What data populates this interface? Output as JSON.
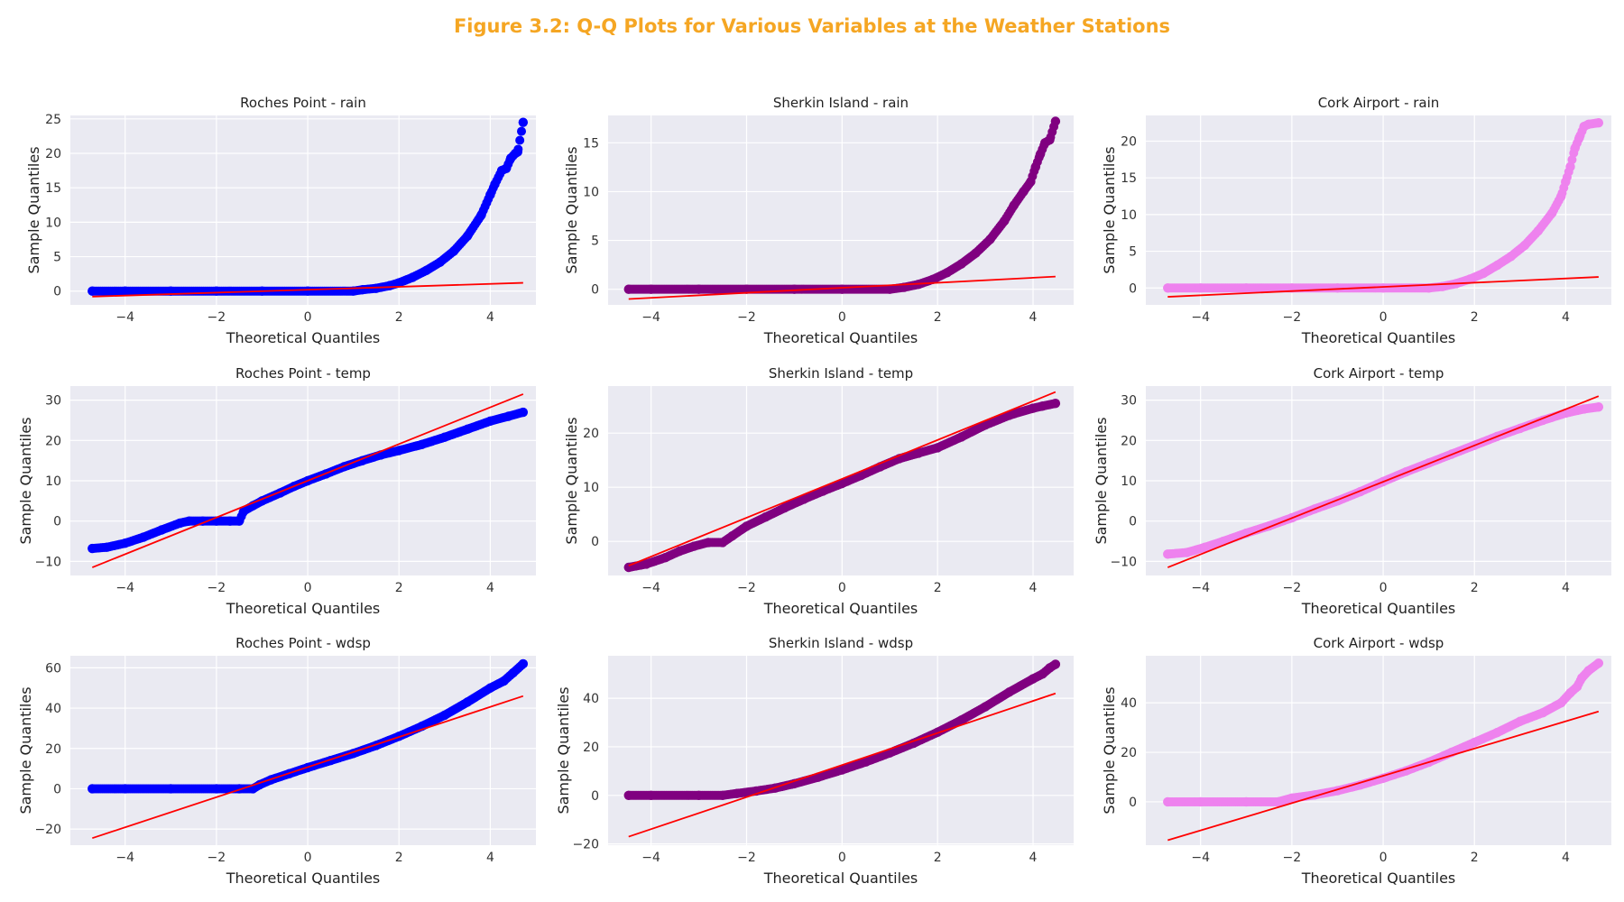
{
  "figure_title": "Figure 3.2: Q-Q Plots for Various Variables at the Weather Stations",
  "colors": {
    "title": "#f5a623",
    "panel_background": "#eaeaf2",
    "grid": "#ffffff",
    "reference_line": "#ff0000",
    "roches_point": "#0000ff",
    "sherkin_island": "#800080",
    "cork_airport": "#ee82ee"
  },
  "chart_data": [
    {
      "type": "scatter",
      "title": "Roches Point - rain",
      "xlabel": "Theoretical Quantiles",
      "ylabel": "Sample Quantiles",
      "xlim": [
        -5.2,
        5.0
      ],
      "ylim": [
        -2.0,
        25.5
      ],
      "xticks": [
        "−4",
        "−2",
        "0",
        "2",
        "4"
      ],
      "yticks": [
        "0",
        "5",
        "10",
        "15",
        "20",
        "25"
      ],
      "grid": true,
      "color": "#0000ff",
      "points": [
        [
          -4.72,
          0
        ],
        [
          -4,
          0
        ],
        [
          -3,
          0
        ],
        [
          -2,
          0
        ],
        [
          -1,
          0
        ],
        [
          0,
          0
        ],
        [
          1,
          0
        ],
        [
          1.2,
          0.2
        ],
        [
          1.5,
          0.4
        ],
        [
          1.8,
          0.8
        ],
        [
          2.0,
          1.2
        ],
        [
          2.3,
          2.0
        ],
        [
          2.6,
          3.0
        ],
        [
          2.9,
          4.2
        ],
        [
          3.2,
          5.8
        ],
        [
          3.5,
          8.0
        ],
        [
          3.8,
          11.0
        ],
        [
          4.0,
          14.0
        ],
        [
          4.1,
          15.5
        ],
        [
          4.25,
          17.5
        ],
        [
          4.35,
          17.8
        ],
        [
          4.45,
          19.3
        ],
        [
          4.55,
          20.0
        ],
        [
          4.6,
          20.2
        ],
        [
          4.72,
          24.5
        ]
      ],
      "reference_line": {
        "x": [
          -4.72,
          4.72
        ],
        "y": [
          -0.8,
          1.2
        ]
      }
    },
    {
      "type": "scatter",
      "title": "Sherkin Island - rain",
      "xlabel": "Theoretical Quantiles",
      "ylabel": "Sample Quantiles",
      "xlim": [
        -4.9,
        4.85
      ],
      "ylim": [
        -1.6,
        17.8
      ],
      "xticks": [
        "−4",
        "−2",
        "0",
        "2",
        "4"
      ],
      "yticks": [
        "0",
        "5",
        "10",
        "15"
      ],
      "grid": true,
      "color": "#800080",
      "points": [
        [
          -4.47,
          0
        ],
        [
          -4,
          0
        ],
        [
          -3,
          0
        ],
        [
          -2,
          0
        ],
        [
          -1,
          0
        ],
        [
          0,
          0
        ],
        [
          1,
          0
        ],
        [
          1.3,
          0.2
        ],
        [
          1.6,
          0.5
        ],
        [
          1.9,
          1.0
        ],
        [
          2.2,
          1.7
        ],
        [
          2.5,
          2.6
        ],
        [
          2.8,
          3.7
        ],
        [
          3.1,
          5.1
        ],
        [
          3.4,
          7.0
        ],
        [
          3.6,
          8.6
        ],
        [
          3.8,
          10.0
        ],
        [
          3.95,
          11.0
        ],
        [
          4.05,
          12.5
        ],
        [
          4.15,
          13.8
        ],
        [
          4.25,
          15.0
        ],
        [
          4.35,
          15.3
        ],
        [
          4.47,
          17.2
        ]
      ],
      "reference_line": {
        "x": [
          -4.47,
          4.47
        ],
        "y": [
          -1.0,
          1.3
        ]
      }
    },
    {
      "type": "scatter",
      "title": "Cork Airport - rain",
      "xlabel": "Theoretical Quantiles",
      "ylabel": "Sample Quantiles",
      "xlim": [
        -5.2,
        5.0
      ],
      "ylim": [
        -2.3,
        23.5
      ],
      "xticks": [
        "−4",
        "−2",
        "0",
        "2",
        "4"
      ],
      "yticks": [
        "0",
        "5",
        "10",
        "15",
        "20"
      ],
      "grid": true,
      "color": "#ee82ee",
      "points": [
        [
          -4.72,
          0
        ],
        [
          -4,
          0
        ],
        [
          -3,
          0
        ],
        [
          -2,
          0
        ],
        [
          -1,
          0
        ],
        [
          0,
          0
        ],
        [
          1,
          0
        ],
        [
          1.3,
          0.2
        ],
        [
          1.6,
          0.6
        ],
        [
          1.9,
          1.2
        ],
        [
          2.2,
          2.0
        ],
        [
          2.5,
          3.1
        ],
        [
          2.8,
          4.3
        ],
        [
          3.1,
          5.8
        ],
        [
          3.4,
          7.8
        ],
        [
          3.7,
          10.2
        ],
        [
          3.9,
          12.5
        ],
        [
          4.0,
          14.5
        ],
        [
          4.1,
          16.5
        ],
        [
          4.2,
          19.0
        ],
        [
          4.3,
          20.5
        ],
        [
          4.4,
          22.0
        ],
        [
          4.5,
          22.3
        ],
        [
          4.72,
          22.5
        ]
      ],
      "reference_line": {
        "x": [
          -4.72,
          4.72
        ],
        "y": [
          -1.2,
          1.5
        ]
      }
    },
    {
      "type": "scatter",
      "title": "Roches Point - temp",
      "xlabel": "Theoretical Quantiles",
      "ylabel": "Sample Quantiles",
      "xlim": [
        -5.2,
        5.0
      ],
      "ylim": [
        -13.5,
        33.5
      ],
      "xticks": [
        "−4",
        "−2",
        "0",
        "2",
        "4"
      ],
      "yticks": [
        "−10",
        "0",
        "10",
        "20",
        "30"
      ],
      "grid": true,
      "color": "#0000ff",
      "points": [
        [
          -4.72,
          -6.8
        ],
        [
          -4.4,
          -6.5
        ],
        [
          -4.0,
          -5.5
        ],
        [
          -3.6,
          -4.0
        ],
        [
          -3.2,
          -2.2
        ],
        [
          -2.8,
          -0.5
        ],
        [
          -2.6,
          0
        ],
        [
          -2.3,
          0
        ],
        [
          -2.0,
          0
        ],
        [
          -1.7,
          0
        ],
        [
          -1.5,
          0
        ],
        [
          -1.4,
          2.5
        ],
        [
          -1.2,
          3.8
        ],
        [
          -1.0,
          5.0
        ],
        [
          -0.6,
          7.0
        ],
        [
          -0.3,
          8.6
        ],
        [
          0,
          10.0
        ],
        [
          0.4,
          11.7
        ],
        [
          0.8,
          13.5
        ],
        [
          1.2,
          15.0
        ],
        [
          1.6,
          16.4
        ],
        [
          2.0,
          17.5
        ],
        [
          2.5,
          19.0
        ],
        [
          3.0,
          20.8
        ],
        [
          3.5,
          22.8
        ],
        [
          4.0,
          24.8
        ],
        [
          4.4,
          26.0
        ],
        [
          4.72,
          27.0
        ]
      ],
      "reference_line": {
        "x": [
          -4.72,
          4.72
        ],
        "y": [
          -11.5,
          31.5
        ]
      }
    },
    {
      "type": "scatter",
      "title": "Sherkin Island - temp",
      "xlabel": "Theoretical Quantiles",
      "ylabel": "Sample Quantiles",
      "xlim": [
        -4.9,
        4.85
      ],
      "ylim": [
        -6.3,
        28.7
      ],
      "xticks": [
        "−4",
        "−2",
        "0",
        "2",
        "4"
      ],
      "yticks": [
        "0",
        "10",
        "20"
      ],
      "grid": true,
      "color": "#800080",
      "points": [
        [
          -4.47,
          -4.8
        ],
        [
          -4.1,
          -4.2
        ],
        [
          -3.7,
          -3.0
        ],
        [
          -3.4,
          -1.8
        ],
        [
          -3.1,
          -0.9
        ],
        [
          -2.8,
          -0.2
        ],
        [
          -2.5,
          -0.2
        ],
        [
          -2.3,
          1.0
        ],
        [
          -2.0,
          2.8
        ],
        [
          -1.6,
          4.5
        ],
        [
          -1.2,
          6.2
        ],
        [
          -0.8,
          7.8
        ],
        [
          -0.4,
          9.3
        ],
        [
          0,
          10.7
        ],
        [
          0.4,
          12.2
        ],
        [
          0.8,
          13.8
        ],
        [
          1.2,
          15.3
        ],
        [
          1.6,
          16.3
        ],
        [
          2.0,
          17.3
        ],
        [
          2.5,
          19.3
        ],
        [
          3.0,
          21.5
        ],
        [
          3.5,
          23.3
        ],
        [
          4.0,
          24.6
        ],
        [
          4.2,
          25.0
        ],
        [
          4.47,
          25.5
        ]
      ],
      "reference_line": {
        "x": [
          -4.47,
          4.47
        ],
        "y": [
          -4.5,
          27.6
        ]
      }
    },
    {
      "type": "scatter",
      "title": "Cork Airport - temp",
      "xlabel": "Theoretical Quantiles",
      "ylabel": "Sample Quantiles",
      "xlim": [
        -5.2,
        5.0
      ],
      "ylim": [
        -13.5,
        33.5
      ],
      "xticks": [
        "−4",
        "−2",
        "0",
        "2",
        "4"
      ],
      "yticks": [
        "−10",
        "0",
        "10",
        "20",
        "30"
      ],
      "grid": true,
      "color": "#ee82ee",
      "points": [
        [
          -4.72,
          -8.2
        ],
        [
          -4.3,
          -7.8
        ],
        [
          -3.9,
          -6.5
        ],
        [
          -3.5,
          -5.0
        ],
        [
          -3.0,
          -3.0
        ],
        [
          -2.5,
          -1.2
        ],
        [
          -2.0,
          0.8
        ],
        [
          -1.5,
          3.0
        ],
        [
          -1.0,
          5.0
        ],
        [
          -0.5,
          7.3
        ],
        [
          0,
          9.8
        ],
        [
          0.5,
          12.2
        ],
        [
          1.0,
          14.4
        ],
        [
          1.5,
          16.6
        ],
        [
          2.0,
          18.8
        ],
        [
          2.5,
          21.0
        ],
        [
          3.0,
          23.0
        ],
        [
          3.5,
          25.0
        ],
        [
          4.0,
          26.8
        ],
        [
          4.4,
          27.8
        ],
        [
          4.72,
          28.3
        ]
      ],
      "reference_line": {
        "x": [
          -4.72,
          4.72
        ],
        "y": [
          -11.5,
          31.0
        ]
      }
    },
    {
      "type": "scatter",
      "title": "Roches Point - wdsp",
      "xlabel": "Theoretical Quantiles",
      "ylabel": "Sample Quantiles",
      "xlim": [
        -5.2,
        5.0
      ],
      "ylim": [
        -28.0,
        66.0
      ],
      "xticks": [
        "−4",
        "−2",
        "0",
        "2",
        "4"
      ],
      "yticks": [
        "−20",
        "0",
        "20",
        "40",
        "60"
      ],
      "grid": true,
      "color": "#0000ff",
      "points": [
        [
          -4.72,
          0
        ],
        [
          -4,
          0
        ],
        [
          -3,
          0
        ],
        [
          -2,
          0
        ],
        [
          -1.5,
          0
        ],
        [
          -1.2,
          0
        ],
        [
          -1.05,
          2.0
        ],
        [
          -0.8,
          4.5
        ],
        [
          -0.4,
          7.5
        ],
        [
          0,
          10.5
        ],
        [
          0.5,
          14.0
        ],
        [
          1.0,
          17.5
        ],
        [
          1.5,
          21.5
        ],
        [
          2.0,
          26.0
        ],
        [
          2.5,
          31.0
        ],
        [
          3.0,
          36.5
        ],
        [
          3.5,
          43.0
        ],
        [
          4.0,
          50.0
        ],
        [
          4.3,
          53.5
        ],
        [
          4.5,
          57.5
        ],
        [
          4.72,
          62.0
        ]
      ],
      "reference_line": {
        "x": [
          -4.72,
          4.72
        ],
        "y": [
          -24.5,
          46.0
        ]
      }
    },
    {
      "type": "scatter",
      "title": "Sherkin Island - wdsp",
      "xlabel": "Theoretical Quantiles",
      "ylabel": "Sample Quantiles",
      "xlim": [
        -4.9,
        4.85
      ],
      "ylim": [
        -20.5,
        57.5
      ],
      "xticks": [
        "−4",
        "−2",
        "0",
        "2",
        "4"
      ],
      "yticks": [
        "−20",
        "0",
        "20",
        "40"
      ],
      "grid": true,
      "color": "#800080",
      "points": [
        [
          -4.47,
          0
        ],
        [
          -4,
          0
        ],
        [
          -3,
          0
        ],
        [
          -2.5,
          0
        ],
        [
          -2.2,
          0.8
        ],
        [
          -1.8,
          1.8
        ],
        [
          -1.4,
          3.0
        ],
        [
          -1.0,
          4.8
        ],
        [
          -0.5,
          7.5
        ],
        [
          0,
          10.5
        ],
        [
          0.5,
          13.8
        ],
        [
          1.0,
          17.5
        ],
        [
          1.5,
          21.5
        ],
        [
          2.0,
          26.0
        ],
        [
          2.5,
          31.0
        ],
        [
          3.0,
          36.5
        ],
        [
          3.5,
          42.5
        ],
        [
          4.0,
          48.0
        ],
        [
          4.2,
          50.0
        ],
        [
          4.35,
          52.5
        ],
        [
          4.47,
          54.0
        ]
      ],
      "reference_line": {
        "x": [
          -4.47,
          4.47
        ],
        "y": [
          -17.0,
          42.0
        ]
      }
    },
    {
      "type": "scatter",
      "title": "Cork Airport - wdsp",
      "xlabel": "Theoretical Quantiles",
      "ylabel": "Sample Quantiles",
      "xlim": [
        -5.2,
        5.0
      ],
      "ylim": [
        -17.5,
        59.0
      ],
      "xticks": [
        "−4",
        "−2",
        "0",
        "2",
        "4"
      ],
      "yticks": [
        "0",
        "20",
        "40"
      ],
      "grid": true,
      "color": "#ee82ee",
      "points": [
        [
          -4.72,
          0
        ],
        [
          -4,
          0
        ],
        [
          -3,
          0
        ],
        [
          -2.3,
          0
        ],
        [
          -2.0,
          1.5
        ],
        [
          -1.5,
          2.8
        ],
        [
          -1.0,
          4.5
        ],
        [
          -0.5,
          6.8
        ],
        [
          0,
          9.5
        ],
        [
          0.5,
          12.5
        ],
        [
          1.0,
          16.0
        ],
        [
          1.5,
          20.0
        ],
        [
          2.0,
          24.0
        ],
        [
          2.5,
          28.0
        ],
        [
          3.0,
          32.5
        ],
        [
          3.5,
          36.0
        ],
        [
          3.9,
          40.0
        ],
        [
          4.1,
          44.0
        ],
        [
          4.25,
          46.5
        ],
        [
          4.35,
          50.0
        ],
        [
          4.5,
          53.0
        ],
        [
          4.72,
          56.0
        ]
      ],
      "reference_line": {
        "x": [
          -4.72,
          4.72
        ],
        "y": [
          -15.5,
          36.5
        ]
      }
    }
  ]
}
